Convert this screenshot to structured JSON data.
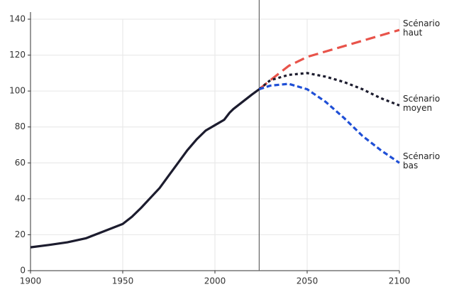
{
  "chart_data": {
    "type": "line",
    "x": [
      1900,
      1910,
      1920,
      1930,
      1940,
      1950,
      1955,
      1960,
      1965,
      1970,
      1975,
      1980,
      1985,
      1990,
      1995,
      2000,
      2005,
      2008,
      2010,
      2015,
      2020,
      2024,
      2030,
      2040,
      2050,
      2060,
      2070,
      2080,
      2090,
      2100
    ],
    "series": [
      {
        "name": null,
        "color": "#1c1c2e",
        "dash": "solid",
        "values": [
          13,
          14.3,
          15.8,
          18,
          22,
          26,
          30,
          35,
          40.5,
          46,
          53,
          60,
          67,
          73,
          78,
          81,
          84,
          88,
          90,
          94,
          98,
          101,
          null,
          null,
          null,
          null,
          null,
          null,
          null,
          null
        ]
      },
      {
        "name": "Scénario haut",
        "color": "#e8534a",
        "dash": "long",
        "values": [
          null,
          null,
          null,
          null,
          null,
          null,
          null,
          null,
          null,
          null,
          null,
          null,
          null,
          null,
          null,
          null,
          null,
          null,
          null,
          null,
          null,
          101,
          106,
          114,
          119,
          122,
          125,
          128,
          131,
          134
        ]
      },
      {
        "name": "Scénario moyen",
        "color": "#1c1c2e",
        "dash": "dotted",
        "values": [
          null,
          null,
          null,
          null,
          null,
          null,
          null,
          null,
          null,
          null,
          null,
          null,
          null,
          null,
          null,
          null,
          null,
          null,
          null,
          null,
          null,
          101,
          106,
          109,
          110,
          108,
          105,
          101,
          96,
          92
        ]
      },
      {
        "name": "Scénario bas",
        "color": "#1f4fd6",
        "dash": "short",
        "values": [
          null,
          null,
          null,
          null,
          null,
          null,
          null,
          null,
          null,
          null,
          null,
          null,
          null,
          null,
          null,
          null,
          null,
          null,
          null,
          null,
          null,
          101,
          103,
          104,
          101,
          94,
          85,
          75,
          67,
          60
        ]
      }
    ],
    "xlim": [
      1900,
      2100
    ],
    "xticks": [
      1900,
      1950,
      2000,
      2050,
      2100
    ],
    "ylim": [
      0,
      140
    ],
    "yticks": [
      0,
      20,
      40,
      60,
      80,
      100,
      120,
      140
    ],
    "grid": true,
    "vline": 2024
  }
}
